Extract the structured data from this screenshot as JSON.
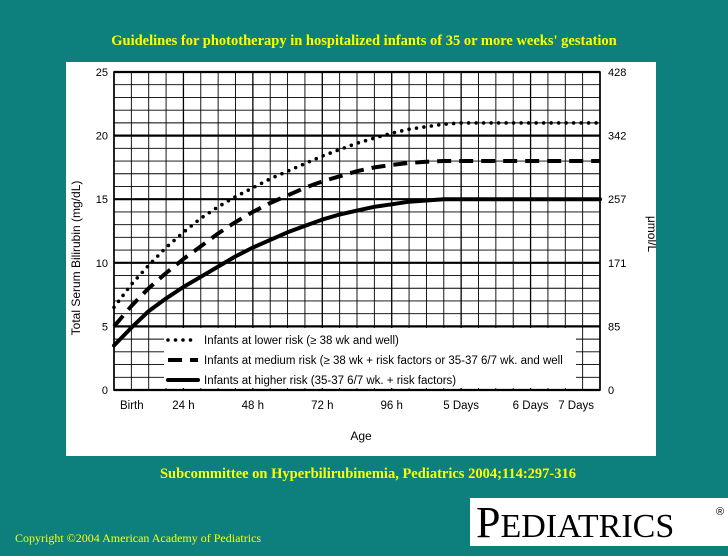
{
  "slide": {
    "title": "Guidelines for phototherapy in hospitalized infants of 35 or more weeks' gestation",
    "citation": "Subcommittee on Hyperbilirubinemia,   Pediatrics 2004;114:297-316",
    "copyright": "Copyright ©2004 American Academy of Pediatrics",
    "logo_first": "P",
    "logo_rest": "EDIATRICS",
    "logo_mark": "®"
  },
  "colors": {
    "background": "#0d7f7c",
    "title": "#ffff00",
    "panel": "#ffffff",
    "ink": "#000000"
  },
  "chart_data": {
    "type": "line",
    "xlabel": "Age",
    "ylabel": "Total Serum Bilirubin (mg/dL)",
    "ylabel_right": "μmol/L",
    "x_unit": "hours",
    "xlim": [
      0,
      168
    ],
    "ylim": [
      0,
      25
    ],
    "x_ticks": [
      {
        "value": 0,
        "label": "Birth"
      },
      {
        "value": 24,
        "label": "24 h"
      },
      {
        "value": 48,
        "label": "48 h"
      },
      {
        "value": 72,
        "label": "72 h"
      },
      {
        "value": 96,
        "label": "96 h"
      },
      {
        "value": 120,
        "label": "5 Days"
      },
      {
        "value": 144,
        "label": "6 Days"
      },
      {
        "value": 168,
        "label": "7 Days"
      }
    ],
    "y_ticks": [
      {
        "value": 0,
        "label": "0"
      },
      {
        "value": 5,
        "label": "5"
      },
      {
        "value": 10,
        "label": "10"
      },
      {
        "value": 15,
        "label": "15"
      },
      {
        "value": 20,
        "label": "20"
      },
      {
        "value": 25,
        "label": "25"
      }
    ],
    "y_ticks_right": [
      {
        "value": 0,
        "label": "0"
      },
      {
        "value": 5,
        "label": "85"
      },
      {
        "value": 10,
        "label": "171"
      },
      {
        "value": 15,
        "label": "257"
      },
      {
        "value": 20,
        "label": "342"
      },
      {
        "value": 25,
        "label": "428"
      }
    ],
    "grid": true,
    "legend_position": "bottom-left",
    "series": [
      {
        "name": "Infants at lower risk (≥ 38 wk and well)",
        "style": "dotted",
        "points": [
          [
            0,
            6.5
          ],
          [
            6,
            8.3
          ],
          [
            12,
            9.8
          ],
          [
            18,
            11.2
          ],
          [
            24,
            12.4
          ],
          [
            30,
            13.5
          ],
          [
            36,
            14.4
          ],
          [
            42,
            15.2
          ],
          [
            48,
            15.9
          ],
          [
            54,
            16.6
          ],
          [
            60,
            17.2
          ],
          [
            66,
            17.8
          ],
          [
            72,
            18.4
          ],
          [
            78,
            18.9
          ],
          [
            84,
            19.4
          ],
          [
            90,
            19.8
          ],
          [
            96,
            20.2
          ],
          [
            102,
            20.5
          ],
          [
            108,
            20.7
          ],
          [
            114,
            20.9
          ],
          [
            120,
            21.0
          ],
          [
            144,
            21.0
          ],
          [
            168,
            21.0
          ]
        ]
      },
      {
        "name": "Infants at medium risk (≥ 38 wk + risk factors or 35-37 6/7 wk. and well",
        "style": "dashed",
        "points": [
          [
            0,
            5.0
          ],
          [
            6,
            6.6
          ],
          [
            12,
            8.0
          ],
          [
            18,
            9.2
          ],
          [
            24,
            10.3
          ],
          [
            30,
            11.3
          ],
          [
            36,
            12.3
          ],
          [
            42,
            13.2
          ],
          [
            48,
            14.0
          ],
          [
            54,
            14.7
          ],
          [
            60,
            15.3
          ],
          [
            66,
            15.9
          ],
          [
            72,
            16.4
          ],
          [
            78,
            16.8
          ],
          [
            84,
            17.2
          ],
          [
            90,
            17.5
          ],
          [
            96,
            17.7
          ],
          [
            102,
            17.85
          ],
          [
            108,
            17.95
          ],
          [
            114,
            18.0
          ],
          [
            120,
            18.0
          ],
          [
            144,
            18.0
          ],
          [
            168,
            18.0
          ]
        ]
      },
      {
        "name": "Infants at higher risk (35-37 6/7 wk. + risk factors)",
        "style": "solid",
        "points": [
          [
            0,
            3.5
          ],
          [
            6,
            4.9
          ],
          [
            12,
            6.2
          ],
          [
            18,
            7.2
          ],
          [
            24,
            8.1
          ],
          [
            30,
            8.9
          ],
          [
            36,
            9.7
          ],
          [
            42,
            10.5
          ],
          [
            48,
            11.2
          ],
          [
            54,
            11.8
          ],
          [
            60,
            12.4
          ],
          [
            66,
            12.9
          ],
          [
            72,
            13.4
          ],
          [
            78,
            13.8
          ],
          [
            84,
            14.1
          ],
          [
            90,
            14.4
          ],
          [
            96,
            14.6
          ],
          [
            102,
            14.8
          ],
          [
            108,
            14.9
          ],
          [
            114,
            15.0
          ],
          [
            120,
            15.0
          ],
          [
            144,
            15.0
          ],
          [
            168,
            15.0
          ]
        ]
      }
    ]
  }
}
